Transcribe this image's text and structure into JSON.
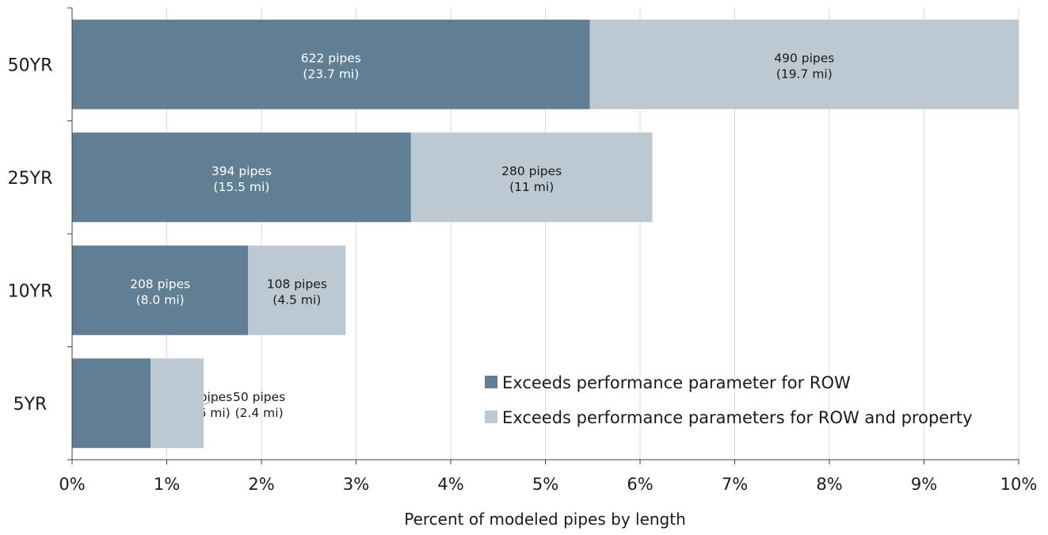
{
  "chart_data": {
    "type": "bar",
    "orientation": "horizontal",
    "stacked": true,
    "title": "",
    "xlabel": "Percent of modeled pipes by length",
    "ylabel": "",
    "xlim": [
      0,
      10
    ],
    "x_ticks": [
      "0%",
      "1%",
      "2%",
      "3%",
      "4%",
      "5%",
      "6%",
      "7%",
      "8%",
      "9%",
      "10%"
    ],
    "grid": "vertical",
    "legend_position": "bottom-right",
    "categories": [
      "50YR",
      "25YR",
      "10YR",
      "5YR"
    ],
    "series": [
      {
        "name": "Exceeds performance parameter for ROW",
        "color": "#617f94",
        "label_color": "#ffffff",
        "values": [
          5.47,
          3.58,
          1.86,
          0.83
        ],
        "labels": [
          [
            "622 pipes",
            "(23.7 mi)"
          ],
          [
            "394 pipes",
            "(15.5 mi)"
          ],
          [
            "208 pipes",
            "(8.0 mi)"
          ],
          [
            "97 pipes",
            "(3.6 mi)"
          ]
        ]
      },
      {
        "name": "Exceeds performance parameters for ROW and property",
        "color": "#bdc9d2",
        "label_color": "#1a1a1a",
        "values": [
          4.53,
          2.55,
          1.03,
          0.56
        ],
        "labels": [
          [
            "490 pipes",
            "(19.7 mi)"
          ],
          [
            "280 pipes",
            "(11 mi)"
          ],
          [
            "108 pipes",
            "(4.5 mi)"
          ],
          [
            "50 pipes",
            "(2.4 mi)"
          ]
        ]
      }
    ]
  }
}
